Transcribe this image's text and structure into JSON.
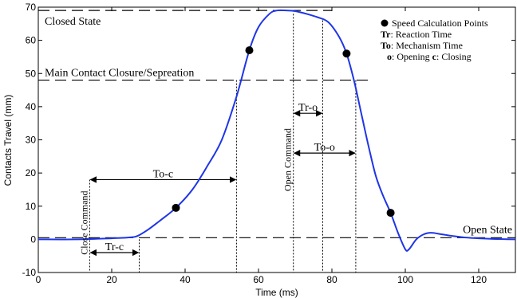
{
  "chart_data": {
    "type": "line",
    "title": "",
    "xlabel": "Time (ms)",
    "ylabel": "Contacts Travel (mm)",
    "xlim": [
      0,
      130
    ],
    "ylim": [
      -10,
      70
    ],
    "x_ticks": [
      0,
      20,
      40,
      60,
      80,
      100,
      120
    ],
    "y_ticks": [
      -10,
      0,
      10,
      20,
      30,
      40,
      50,
      60,
      70
    ],
    "colors": {
      "line": "#1f35e6",
      "guide": "#000000"
    },
    "series": [
      {
        "x": [
          0,
          10,
          20,
          25,
          27,
          30,
          33,
          37.5,
          42,
          46,
          50,
          54,
          57.5,
          60,
          63,
          65,
          68,
          70,
          73,
          76,
          79,
          82,
          84,
          86,
          88,
          90,
          92,
          94,
          96,
          98,
          100,
          101,
          103,
          105,
          107,
          110,
          113,
          117,
          120,
          125,
          130
        ],
        "y": [
          0,
          0,
          0.3,
          0.6,
          1,
          3,
          5.5,
          9.5,
          15,
          22,
          30,
          43,
          57,
          64,
          68,
          69,
          69,
          68.8,
          68,
          67,
          65.5,
          61,
          56,
          48,
          38,
          28,
          19,
          13,
          8,
          2,
          -3,
          -3,
          0,
          1.5,
          2,
          1.5,
          1,
          0.5,
          0.3,
          0.1,
          0
        ]
      }
    ],
    "markers": {
      "label": "Speed Calculation Points",
      "points": [
        {
          "x": 37.5,
          "y": 9.5
        },
        {
          "x": 57.5,
          "y": 57
        },
        {
          "x": 84,
          "y": 56
        },
        {
          "x": 96,
          "y": 8
        }
      ]
    },
    "horizontal_lines": [
      {
        "y": 69,
        "label": "Closed State",
        "x_start": 0,
        "x_end": 80
      },
      {
        "y": 48,
        "label": "Main Contact Closure/Sepreation",
        "x_start": 0,
        "x_end": 90
      },
      {
        "y": 0.5,
        "label": "Open State",
        "x_start": 0,
        "x_end": 130
      }
    ],
    "vertical_lines": [
      {
        "x": 14,
        "y_top": 18,
        "label": "Close Command"
      },
      {
        "x": 27.5,
        "y_top": 0
      },
      {
        "x": 54,
        "y_top": 48
      },
      {
        "x": 69.5,
        "y_top": 68,
        "label": "Open Command"
      },
      {
        "x": 77.5,
        "y_top": 66
      },
      {
        "x": 86.5,
        "y_top": 48
      }
    ],
    "intervals": [
      {
        "label": "Tr-c",
        "x1": 14,
        "x2": 27.5,
        "y": -4
      },
      {
        "label": "To-c",
        "x1": 14,
        "x2": 54,
        "y": 18
      },
      {
        "label": "Tr-o",
        "x1": 69.5,
        "x2": 77.5,
        "y": 38
      },
      {
        "label": "To-o",
        "x1": 69.5,
        "x2": 86.5,
        "y": 26
      }
    ],
    "legend_placement": "top-right",
    "legend_lines": [
      {
        "bold": "Tr",
        "text": ": Reaction Time"
      },
      {
        "bold": "To",
        "text": ": Mechanism Time"
      },
      {
        "bold": "o",
        "text": ": Opening  ",
        "bold2": "c",
        "text2": ": Closing"
      }
    ]
  }
}
